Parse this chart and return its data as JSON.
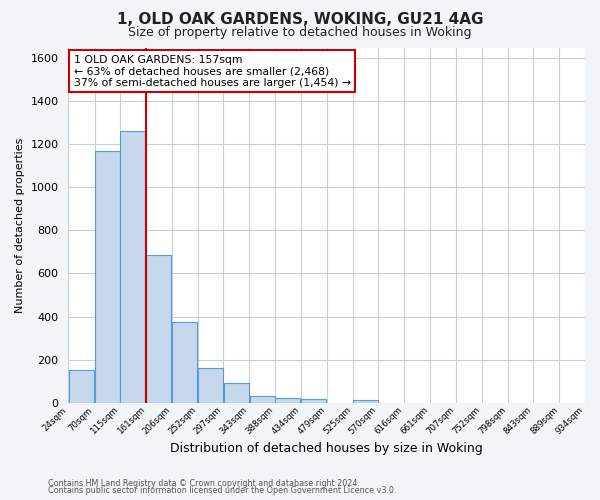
{
  "title": "1, OLD OAK GARDENS, WOKING, GU21 4AG",
  "subtitle": "Size of property relative to detached houses in Woking",
  "xlabel": "Distribution of detached houses by size in Woking",
  "ylabel": "Number of detached properties",
  "bar_left_edges": [
    24,
    70,
    115,
    161,
    206,
    252,
    297,
    343,
    388,
    434,
    479,
    525,
    570,
    616,
    661,
    707,
    752,
    798,
    843,
    889
  ],
  "bar_heights": [
    150,
    1170,
    1260,
    685,
    375,
    163,
    90,
    33,
    20,
    15,
    0,
    10,
    0,
    0,
    0,
    0,
    0,
    0,
    0,
    0
  ],
  "bin_width": 45,
  "x_tick_labels": [
    "24sqm",
    "70sqm",
    "115sqm",
    "161sqm",
    "206sqm",
    "252sqm",
    "297sqm",
    "343sqm",
    "388sqm",
    "434sqm",
    "479sqm",
    "525sqm",
    "570sqm",
    "616sqm",
    "661sqm",
    "707sqm",
    "752sqm",
    "798sqm",
    "843sqm",
    "889sqm",
    "934sqm"
  ],
  "ylim": [
    0,
    1650
  ],
  "yticks": [
    0,
    200,
    400,
    600,
    800,
    1000,
    1200,
    1400,
    1600
  ],
  "bar_color": "#c5d8ed",
  "bar_edge_color": "#5b9bd5",
  "vline_x": 161,
  "vline_color": "#cc0000",
  "annotation_line1": "1 OLD OAK GARDENS: 157sqm",
  "annotation_line2": "← 63% of detached houses are smaller (2,468)",
  "annotation_line3": "37% of semi-detached houses are larger (1,454) →",
  "footer_line1": "Contains HM Land Registry data © Crown copyright and database right 2024.",
  "footer_line2": "Contains public sector information licensed under the Open Government Licence v3.0.",
  "bg_color": "#f2f5f8",
  "plot_bg_color": "#ffffff",
  "grid_color": "#c8d0d8",
  "title_fontsize": 11,
  "subtitle_fontsize": 9,
  "ylabel_fontsize": 8,
  "xlabel_fontsize": 9
}
